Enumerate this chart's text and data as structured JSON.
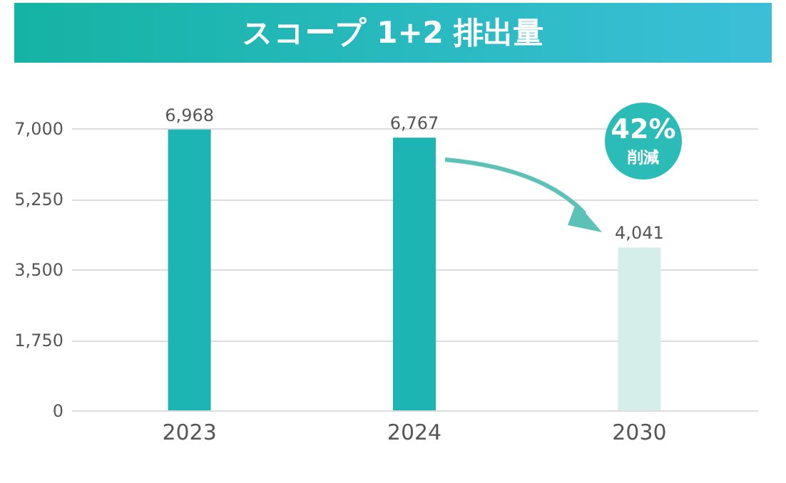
{
  "chart_data": {
    "type": "bar",
    "title": "スコープ 1+2 排出量",
    "categories": [
      "2023",
      "2024",
      "2030"
    ],
    "values": [
      6968,
      6767,
      4041
    ],
    "colors": [
      "#1db5b4",
      "#1db5b4",
      "#d6eeea"
    ],
    "ylim": [
      0,
      7000
    ],
    "yticks": [
      0,
      {
        "value": 1750,
        "label": "1,750"
      },
      {
        "value": 3500,
        "label": "3,500"
      },
      {
        "value": 5250,
        "label": "5,250"
      },
      {
        "value": 7000,
        "label": "7,000"
      }
    ],
    "value_labels": [
      "6,968",
      "6,767",
      "4,041"
    ],
    "grid": "y",
    "annotations": [
      "42%",
      "削減"
    ]
  }
}
